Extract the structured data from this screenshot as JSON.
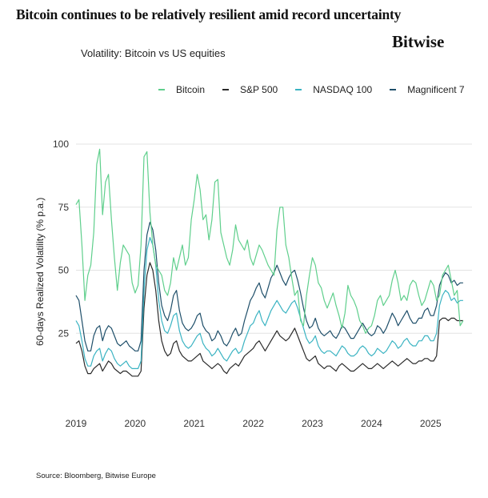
{
  "headline": "Bitcoin continues to be relatively resilient amid record uncertainty",
  "brand": "Bitwise",
  "source": "Source: Bloomberg, Bitwise Europe",
  "colors": {
    "bitcoin": "#5fcf8c",
    "sp500": "#2a2a2a",
    "nasdaq": "#3ab3c2",
    "mag7": "#1f4f6a"
  },
  "chart_data": {
    "type": "line",
    "title": "Volatility: Bitcoin vs US equities",
    "xlabel": "",
    "ylabel": "60-days Realized Volatility (% p.a.)",
    "xlim": [
      2019.0,
      2025.7
    ],
    "ylim": [
      0,
      100
    ],
    "x_ticks": [
      2019,
      2020,
      2021,
      2022,
      2023,
      2024,
      2025
    ],
    "x_tick_labels": [
      "2019",
      "2020",
      "2021",
      "2022",
      "2023",
      "2024",
      "2025"
    ],
    "y_ticks": [
      25,
      50,
      75,
      100
    ],
    "y_tick_labels": [
      "25",
      "50",
      "75",
      "100"
    ],
    "grid": "horizontal",
    "legend_position": "top",
    "series": [
      {
        "name": "Bitcoin",
        "color_key": "bitcoin",
        "x": [
          2019.0,
          2019.05,
          2019.1,
          2019.15,
          2019.2,
          2019.25,
          2019.3,
          2019.35,
          2019.4,
          2019.45,
          2019.5,
          2019.55,
          2019.6,
          2019.65,
          2019.7,
          2019.75,
          2019.8,
          2019.85,
          2019.9,
          2019.95,
          2020.0,
          2020.05,
          2020.1,
          2020.15,
          2020.2,
          2020.25,
          2020.3,
          2020.35,
          2020.4,
          2020.45,
          2020.5,
          2020.55,
          2020.6,
          2020.65,
          2020.7,
          2020.75,
          2020.8,
          2020.85,
          2020.9,
          2020.95,
          2021.0,
          2021.05,
          2021.1,
          2021.15,
          2021.2,
          2021.25,
          2021.3,
          2021.35,
          2021.4,
          2021.45,
          2021.5,
          2021.55,
          2021.6,
          2021.65,
          2021.7,
          2021.75,
          2021.8,
          2021.85,
          2021.9,
          2021.95,
          2022.0,
          2022.05,
          2022.1,
          2022.15,
          2022.2,
          2022.25,
          2022.3,
          2022.35,
          2022.4,
          2022.45,
          2022.5,
          2022.55,
          2022.6,
          2022.65,
          2022.7,
          2022.75,
          2022.8,
          2022.85,
          2022.9,
          2022.95,
          2023.0,
          2023.05,
          2023.1,
          2023.15,
          2023.2,
          2023.25,
          2023.3,
          2023.35,
          2023.4,
          2023.45,
          2023.5,
          2023.55,
          2023.6,
          2023.65,
          2023.7,
          2023.75,
          2023.8,
          2023.85,
          2023.9,
          2023.95,
          2024.0,
          2024.05,
          2024.1,
          2024.15,
          2024.2,
          2024.25,
          2024.3,
          2024.35,
          2024.4,
          2024.45,
          2024.5,
          2024.55,
          2024.6,
          2024.65,
          2024.7,
          2024.75,
          2024.8,
          2024.85,
          2024.9,
          2024.95,
          2025.0,
          2025.05,
          2025.1,
          2025.15,
          2025.2,
          2025.25,
          2025.3,
          2025.35,
          2025.4,
          2025.45,
          2025.5,
          2025.55
        ],
        "values": [
          76,
          78,
          60,
          38,
          48,
          52,
          65,
          92,
          98,
          72,
          85,
          88,
          70,
          55,
          42,
          53,
          60,
          58,
          56,
          45,
          41,
          44,
          60,
          95,
          97,
          73,
          60,
          52,
          50,
          48,
          42,
          40,
          45,
          55,
          50,
          55,
          60,
          52,
          55,
          70,
          78,
          88,
          82,
          70,
          72,
          62,
          70,
          85,
          86,
          65,
          60,
          55,
          52,
          58,
          68,
          62,
          60,
          58,
          62,
          55,
          52,
          56,
          60,
          58,
          55,
          52,
          50,
          48,
          66,
          75,
          75,
          60,
          55,
          47,
          40,
          42,
          30,
          28,
          40,
          48,
          55,
          52,
          45,
          43,
          38,
          35,
          38,
          41,
          36,
          32,
          27,
          33,
          44,
          40,
          38,
          35,
          30,
          28,
          25,
          27,
          28,
          32,
          38,
          40,
          36,
          38,
          40,
          46,
          50,
          45,
          38,
          40,
          38,
          44,
          46,
          45,
          40,
          36,
          38,
          42,
          46,
          44,
          38,
          40,
          48,
          50,
          52,
          46,
          40,
          42,
          28,
          30
        ]
      },
      {
        "name": "S&P 500",
        "color_key": "sp500",
        "x": [
          2019.0,
          2019.05,
          2019.1,
          2019.15,
          2019.2,
          2019.25,
          2019.3,
          2019.35,
          2019.4,
          2019.45,
          2019.5,
          2019.55,
          2019.6,
          2019.65,
          2019.7,
          2019.75,
          2019.8,
          2019.85,
          2019.9,
          2019.95,
          2020.0,
          2020.05,
          2020.1,
          2020.15,
          2020.2,
          2020.25,
          2020.3,
          2020.35,
          2020.4,
          2020.45,
          2020.5,
          2020.55,
          2020.6,
          2020.65,
          2020.7,
          2020.75,
          2020.8,
          2020.85,
          2020.9,
          2020.95,
          2021.0,
          2021.05,
          2021.1,
          2021.15,
          2021.2,
          2021.25,
          2021.3,
          2021.35,
          2021.4,
          2021.45,
          2021.5,
          2021.55,
          2021.6,
          2021.65,
          2021.7,
          2021.75,
          2021.8,
          2021.85,
          2021.9,
          2021.95,
          2022.0,
          2022.05,
          2022.1,
          2022.15,
          2022.2,
          2022.25,
          2022.3,
          2022.35,
          2022.4,
          2022.45,
          2022.5,
          2022.55,
          2022.6,
          2022.65,
          2022.7,
          2022.75,
          2022.8,
          2022.85,
          2022.9,
          2022.95,
          2023.0,
          2023.05,
          2023.1,
          2023.15,
          2023.2,
          2023.25,
          2023.3,
          2023.35,
          2023.4,
          2023.45,
          2023.5,
          2023.55,
          2023.6,
          2023.65,
          2023.7,
          2023.75,
          2023.8,
          2023.85,
          2023.9,
          2023.95,
          2024.0,
          2024.05,
          2024.1,
          2024.15,
          2024.2,
          2024.25,
          2024.3,
          2024.35,
          2024.4,
          2024.45,
          2024.5,
          2024.55,
          2024.6,
          2024.65,
          2024.7,
          2024.75,
          2024.8,
          2024.85,
          2024.9,
          2024.95,
          2025.0,
          2025.05,
          2025.1,
          2025.15,
          2025.2,
          2025.25,
          2025.3,
          2025.35,
          2025.4,
          2025.45,
          2025.5,
          2025.55
        ],
        "values": [
          21,
          22,
          18,
          12,
          9,
          9,
          11,
          12,
          13,
          10,
          12,
          14,
          13,
          11,
          10,
          9,
          10,
          10,
          9,
          8,
          8,
          8,
          10,
          35,
          48,
          53,
          50,
          42,
          30,
          22,
          18,
          16,
          17,
          21,
          22,
          18,
          16,
          15,
          14,
          14,
          15,
          16,
          17,
          14,
          13,
          12,
          11,
          12,
          13,
          12,
          10,
          9,
          11,
          12,
          13,
          12,
          14,
          16,
          17,
          18,
          19,
          21,
          22,
          20,
          18,
          20,
          22,
          24,
          26,
          24,
          23,
          22,
          23,
          25,
          27,
          24,
          21,
          18,
          15,
          14,
          15,
          16,
          13,
          12,
          11,
          12,
          12,
          11,
          10,
          12,
          13,
          12,
          11,
          10,
          10,
          11,
          12,
          13,
          12,
          11,
          11,
          12,
          13,
          12,
          11,
          12,
          13,
          14,
          13,
          12,
          13,
          14,
          15,
          14,
          13,
          13,
          14,
          14,
          15,
          15,
          14,
          14,
          16,
          30,
          31,
          31,
          30,
          31,
          31,
          30,
          30,
          30
        ]
      },
      {
        "name": "NASDAQ 100",
        "color_key": "nasdaq",
        "x": [
          2019.0,
          2019.05,
          2019.1,
          2019.15,
          2019.2,
          2019.25,
          2019.3,
          2019.35,
          2019.4,
          2019.45,
          2019.5,
          2019.55,
          2019.6,
          2019.65,
          2019.7,
          2019.75,
          2019.8,
          2019.85,
          2019.9,
          2019.95,
          2020.0,
          2020.05,
          2020.1,
          2020.15,
          2020.2,
          2020.25,
          2020.3,
          2020.35,
          2020.4,
          2020.45,
          2020.5,
          2020.55,
          2020.6,
          2020.65,
          2020.7,
          2020.75,
          2020.8,
          2020.85,
          2020.9,
          2020.95,
          2021.0,
          2021.05,
          2021.1,
          2021.15,
          2021.2,
          2021.25,
          2021.3,
          2021.35,
          2021.4,
          2021.45,
          2021.5,
          2021.55,
          2021.6,
          2021.65,
          2021.7,
          2021.75,
          2021.8,
          2021.85,
          2021.9,
          2021.95,
          2022.0,
          2022.05,
          2022.1,
          2022.15,
          2022.2,
          2022.25,
          2022.3,
          2022.35,
          2022.4,
          2022.45,
          2022.5,
          2022.55,
          2022.6,
          2022.65,
          2022.7,
          2022.75,
          2022.8,
          2022.85,
          2022.9,
          2022.95,
          2023.0,
          2023.05,
          2023.1,
          2023.15,
          2023.2,
          2023.25,
          2023.3,
          2023.35,
          2023.4,
          2023.45,
          2023.5,
          2023.55,
          2023.6,
          2023.65,
          2023.7,
          2023.75,
          2023.8,
          2023.85,
          2023.9,
          2023.95,
          2024.0,
          2024.05,
          2024.1,
          2024.15,
          2024.2,
          2024.25,
          2024.3,
          2024.35,
          2024.4,
          2024.45,
          2024.5,
          2024.55,
          2024.6,
          2024.65,
          2024.7,
          2024.75,
          2024.8,
          2024.85,
          2024.9,
          2024.95,
          2025.0,
          2025.05,
          2025.1,
          2025.15,
          2025.2,
          2025.25,
          2025.3,
          2025.35,
          2025.4,
          2025.45,
          2025.5,
          2025.55
        ],
        "values": [
          30,
          28,
          22,
          15,
          12,
          12,
          16,
          18,
          19,
          14,
          17,
          19,
          18,
          15,
          13,
          12,
          13,
          14,
          12,
          11,
          11,
          11,
          14,
          42,
          58,
          63,
          60,
          52,
          38,
          30,
          26,
          25,
          28,
          32,
          33,
          26,
          22,
          20,
          19,
          20,
          22,
          24,
          25,
          21,
          19,
          18,
          16,
          17,
          19,
          17,
          15,
          14,
          16,
          18,
          19,
          17,
          18,
          22,
          25,
          28,
          29,
          32,
          34,
          30,
          28,
          31,
          34,
          36,
          38,
          36,
          34,
          33,
          35,
          37,
          38,
          35,
          31,
          27,
          23,
          21,
          22,
          24,
          20,
          18,
          17,
          18,
          18,
          17,
          16,
          18,
          20,
          19,
          17,
          16,
          16,
          17,
          19,
          20,
          19,
          17,
          16,
          17,
          19,
          18,
          17,
          18,
          20,
          22,
          21,
          19,
          20,
          22,
          23,
          21,
          20,
          20,
          22,
          22,
          24,
          24,
          22,
          22,
          25,
          36,
          40,
          42,
          41,
          38,
          39,
          37,
          38,
          38
        ]
      },
      {
        "name": "Magnificent 7",
        "color_key": "mag7",
        "x": [
          2019.0,
          2019.05,
          2019.1,
          2019.15,
          2019.2,
          2019.25,
          2019.3,
          2019.35,
          2019.4,
          2019.45,
          2019.5,
          2019.55,
          2019.6,
          2019.65,
          2019.7,
          2019.75,
          2019.8,
          2019.85,
          2019.9,
          2019.95,
          2020.0,
          2020.05,
          2020.1,
          2020.15,
          2020.2,
          2020.25,
          2020.3,
          2020.35,
          2020.4,
          2020.45,
          2020.5,
          2020.55,
          2020.6,
          2020.65,
          2020.7,
          2020.75,
          2020.8,
          2020.85,
          2020.9,
          2020.95,
          2021.0,
          2021.05,
          2021.1,
          2021.15,
          2021.2,
          2021.25,
          2021.3,
          2021.35,
          2021.4,
          2021.45,
          2021.5,
          2021.55,
          2021.6,
          2021.65,
          2021.7,
          2021.75,
          2021.8,
          2021.85,
          2021.9,
          2021.95,
          2022.0,
          2022.05,
          2022.1,
          2022.15,
          2022.2,
          2022.25,
          2022.3,
          2022.35,
          2022.4,
          2022.45,
          2022.5,
          2022.55,
          2022.6,
          2022.65,
          2022.7,
          2022.75,
          2022.8,
          2022.85,
          2022.9,
          2022.95,
          2023.0,
          2023.05,
          2023.1,
          2023.15,
          2023.2,
          2023.25,
          2023.3,
          2023.35,
          2023.4,
          2023.45,
          2023.5,
          2023.55,
          2023.6,
          2023.65,
          2023.7,
          2023.75,
          2023.8,
          2023.85,
          2023.9,
          2023.95,
          2024.0,
          2024.05,
          2024.1,
          2024.15,
          2024.2,
          2024.25,
          2024.3,
          2024.35,
          2024.4,
          2024.45,
          2024.5,
          2024.55,
          2024.6,
          2024.65,
          2024.7,
          2024.75,
          2024.8,
          2024.85,
          2024.9,
          2024.95,
          2025.0,
          2025.05,
          2025.1,
          2025.15,
          2025.2,
          2025.25,
          2025.3,
          2025.35,
          2025.4,
          2025.45,
          2025.5,
          2025.55
        ],
        "values": [
          40,
          38,
          30,
          22,
          18,
          18,
          24,
          27,
          28,
          22,
          26,
          28,
          27,
          24,
          21,
          20,
          21,
          22,
          20,
          19,
          18,
          18,
          22,
          50,
          64,
          69,
          66,
          58,
          45,
          36,
          32,
          30,
          34,
          40,
          42,
          34,
          29,
          27,
          26,
          27,
          29,
          32,
          33,
          28,
          26,
          25,
          22,
          23,
          26,
          24,
          21,
          20,
          22,
          25,
          27,
          24,
          25,
          30,
          34,
          38,
          40,
          43,
          45,
          41,
          39,
          43,
          47,
          49,
          52,
          49,
          46,
          44,
          47,
          49,
          50,
          46,
          41,
          35,
          30,
          27,
          28,
          31,
          27,
          25,
          24,
          25,
          26,
          24,
          23,
          25,
          28,
          27,
          25,
          23,
          23,
          25,
          27,
          29,
          27,
          25,
          24,
          25,
          28,
          27,
          25,
          27,
          30,
          33,
          31,
          28,
          30,
          32,
          34,
          31,
          29,
          29,
          31,
          31,
          34,
          35,
          32,
          32,
          36,
          44,
          47,
          49,
          48,
          45,
          46,
          44,
          45,
          45
        ]
      }
    ]
  }
}
